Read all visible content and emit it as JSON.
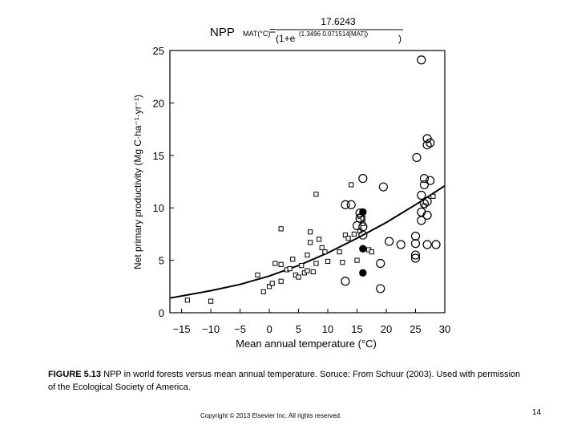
{
  "chart_data": {
    "type": "scatter",
    "formula": {
      "lhs": "NPP",
      "lhs_sub": "MAT(°C)",
      "eq": "=",
      "numerator": "17.6243",
      "denominator_base": "(1+e",
      "denominator_exp": "(1.3496 0.071514[MAT])",
      "denominator_close": ")"
    },
    "xlabel": "Mean annual temperature (°C)",
    "ylabel": "Net primary productivity (Mg C·ha⁻¹·yr⁻¹)",
    "xlim": [
      -17,
      30
    ],
    "ylim": [
      0,
      25
    ],
    "x_ticks": [
      -15,
      -10,
      -5,
      0,
      5,
      10,
      15,
      20,
      25,
      30
    ],
    "x_tick_labels": [
      "−15",
      "−10",
      "−5",
      "0",
      "5",
      "10",
      "15",
      "20",
      "25",
      "30"
    ],
    "y_ticks": [
      0,
      5,
      10,
      15,
      20,
      25
    ],
    "y_tick_labels": [
      "0",
      "5",
      "10",
      "15",
      "20",
      "25"
    ],
    "grid": false,
    "series": [
      {
        "marker": "open-square",
        "points": [
          [
            -14,
            1.2
          ],
          [
            -10,
            1.1
          ],
          [
            -1,
            2.0
          ],
          [
            -2,
            3.6
          ],
          [
            0,
            2.5
          ],
          [
            0.5,
            2.8
          ],
          [
            1,
            4.7
          ],
          [
            2,
            4.6
          ],
          [
            2,
            3.0
          ],
          [
            2,
            8.0
          ],
          [
            3,
            4.1
          ],
          [
            3.5,
            4.2
          ],
          [
            4,
            5.1
          ],
          [
            4.5,
            3.6
          ],
          [
            5,
            3.4
          ],
          [
            5.5,
            4.5
          ],
          [
            6,
            3.8
          ],
          [
            6.5,
            4.0
          ],
          [
            6.5,
            5.5
          ],
          [
            7,
            6.7
          ],
          [
            7,
            7.7
          ],
          [
            7.5,
            3.9
          ],
          [
            8,
            11.3
          ],
          [
            8,
            4.7
          ],
          [
            8.5,
            7.0
          ],
          [
            9,
            6.2
          ],
          [
            9.5,
            5.8
          ],
          [
            10,
            4.9
          ],
          [
            12,
            5.8
          ],
          [
            12.5,
            4.8
          ],
          [
            13,
            7.4
          ],
          [
            13.5,
            7.1
          ],
          [
            14,
            12.2
          ],
          [
            14.5,
            7.5
          ],
          [
            15,
            5.0
          ],
          [
            15.5,
            9.2
          ],
          [
            15.5,
            7.8
          ],
          [
            16,
            9.0
          ],
          [
            16,
            8.5
          ],
          [
            17,
            6.0
          ],
          [
            17.5,
            5.8
          ],
          [
            26.5,
            10.2
          ],
          [
            28,
            11.1
          ]
        ]
      },
      {
        "marker": "open-circle",
        "points": [
          [
            26,
            24.1
          ],
          [
            25.2,
            14.8
          ],
          [
            26.5,
            12.8
          ],
          [
            26.5,
            12.2
          ],
          [
            27,
            16.6
          ],
          [
            27,
            16.0
          ],
          [
            27.5,
            16.2
          ],
          [
            27.5,
            12.6
          ],
          [
            26,
            11.2
          ],
          [
            26.5,
            10.4
          ],
          [
            27,
            10.6
          ],
          [
            26,
            9.6
          ],
          [
            26,
            8.8
          ],
          [
            27,
            9.3
          ],
          [
            25,
            7.3
          ],
          [
            25,
            6.6
          ],
          [
            25,
            5.5
          ],
          [
            25,
            5.2
          ],
          [
            27,
            6.5
          ],
          [
            28.5,
            6.5
          ],
          [
            22.5,
            6.5
          ],
          [
            20.5,
            6.8
          ],
          [
            19.5,
            12.0
          ],
          [
            16,
            12.8
          ],
          [
            14,
            10.3
          ],
          [
            13,
            10.3
          ],
          [
            15.5,
            9.5
          ],
          [
            15.5,
            9.0
          ],
          [
            15,
            8.3
          ],
          [
            16,
            8.2
          ],
          [
            16,
            7.4
          ],
          [
            19,
            4.7
          ],
          [
            19,
            2.3
          ],
          [
            13,
            3.0
          ]
        ]
      },
      {
        "marker": "filled-circle",
        "points": [
          [
            16,
            9.6
          ],
          [
            16,
            6.1
          ],
          [
            16,
            3.8
          ]
        ]
      }
    ],
    "fit_curve": {
      "style": "solid",
      "points": [
        [
          -17,
          1.4
        ],
        [
          -15,
          1.6
        ],
        [
          -10,
          2.1
        ],
        [
          -5,
          2.7
        ],
        [
          0,
          3.5
        ],
        [
          5,
          4.5
        ],
        [
          10,
          5.7
        ],
        [
          15,
          7.1
        ],
        [
          20,
          8.6
        ],
        [
          25,
          10.3
        ],
        [
          30,
          12.1
        ]
      ]
    }
  },
  "caption": {
    "label": "FIGURE 5.13",
    "text": " NPP in world forests versus mean annual temperature. Soruce: From Schuur (2003). Used with permission of the Ecological Society of America."
  },
  "footer": {
    "copyright": "Copyright © 2013 Elsevier Inc. All rights reserved.",
    "page_number": "14"
  }
}
